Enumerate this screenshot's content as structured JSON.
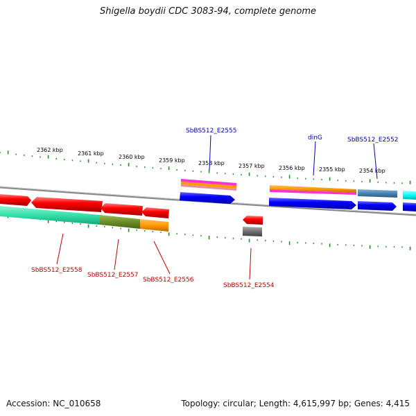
{
  "title": "Shigella boydii CDC 3083-94, complete genome",
  "footer": {
    "accession": "Accession: NC_010658",
    "stats": "Topology: circular; Length: 4,615,997 bp; Genes: 4,415"
  },
  "kbp_ticks": [
    "2362 kbp",
    "2361 kbp",
    "2360 kbp",
    "2359 kbp",
    "2358 kbp",
    "2357 kbp",
    "2356 kbp",
    "2355 kbp",
    "2354 kbp"
  ],
  "gene_labels_top": [
    "SbBS512_E2555",
    "dinG",
    "SbBS512_E2552"
  ],
  "gene_labels_bottom": [
    "SbBS512_E2558",
    "SbBS512_E2557",
    "SbBS512_E2556",
    "SbBS512_E2554"
  ],
  "colors": {
    "cds": "#ff0000",
    "cds_forward_blue": "#0000ff",
    "orange": "#ff9a00",
    "magenta": "#ff33cc",
    "teal": "#33e0a8",
    "olive": "#6b8e23",
    "steel_blue": "#4682b4",
    "cyan": "#00ffff",
    "gray": "#707070",
    "tick_green": "#228b22",
    "backbone": "#888888"
  }
}
